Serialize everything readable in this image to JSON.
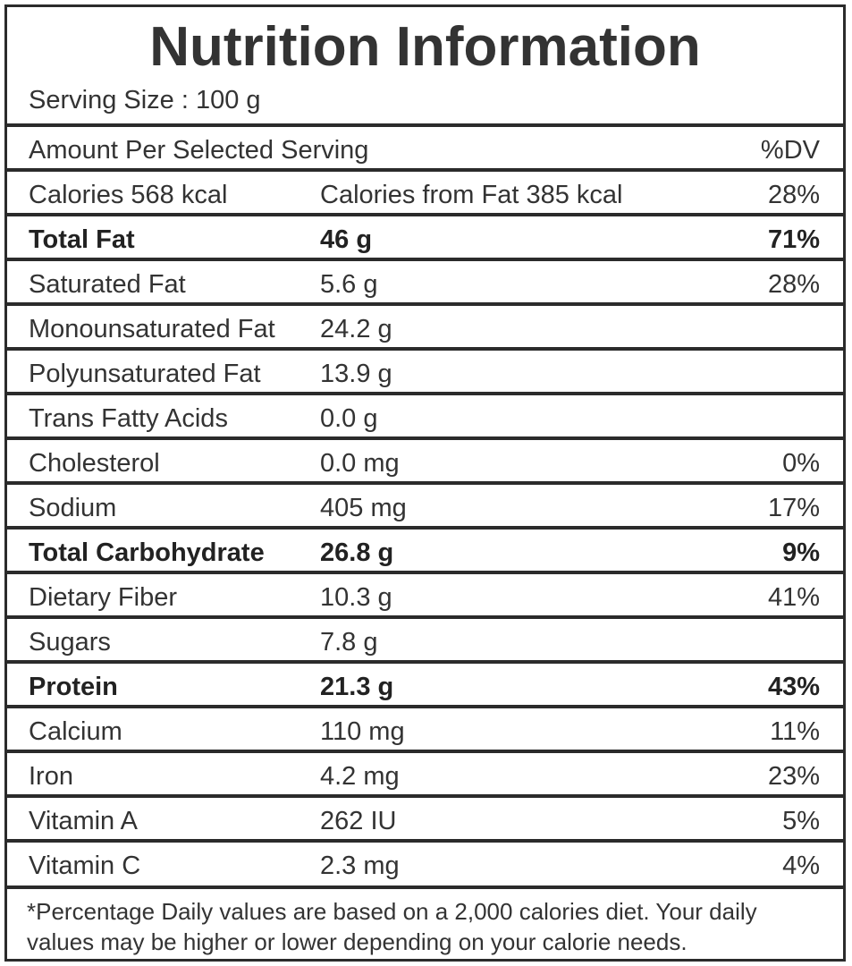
{
  "title": "Nutrition Information",
  "serving": "Serving Size : 100 g",
  "header": {
    "label": "Amount Per Selected Serving",
    "dv": "%DV"
  },
  "rows": [
    {
      "name": "Calories 568 kcal",
      "amount": "Calories from Fat 385 kcal",
      "dv": "28%",
      "bold": false
    },
    {
      "name": "Total Fat",
      "amount": "46 g",
      "dv": "71%",
      "bold": true
    },
    {
      "name": "Saturated Fat",
      "amount": "5.6 g",
      "dv": "28%",
      "bold": false
    },
    {
      "name": "Monounsaturated Fat",
      "amount": "24.2 g",
      "dv": "",
      "bold": false
    },
    {
      "name": "Polyunsaturated Fat",
      "amount": "13.9 g",
      "dv": "",
      "bold": false
    },
    {
      "name": "Trans Fatty Acids",
      "amount": "0.0 g",
      "dv": "",
      "bold": false
    },
    {
      "name": "Cholesterol",
      "amount": "0.0 mg",
      "dv": "0%",
      "bold": false
    },
    {
      "name": "Sodium",
      "amount": "405 mg",
      "dv": "17%",
      "bold": false
    },
    {
      "name": "Total Carbohydrate",
      "amount": "26.8 g",
      "dv": "9%",
      "bold": true
    },
    {
      "name": "Dietary Fiber",
      "amount": "10.3 g",
      "dv": "41%",
      "bold": false
    },
    {
      "name": "Sugars",
      "amount": "7.8 g",
      "dv": "",
      "bold": false
    },
    {
      "name": "Protein",
      "amount": "21.3 g",
      "dv": "43%",
      "bold": true
    },
    {
      "name": "Calcium",
      "amount": "110 mg",
      "dv": "11%",
      "bold": false
    },
    {
      "name": "Iron",
      "amount": "4.2 mg",
      "dv": "23%",
      "bold": false
    },
    {
      "name": "Vitamin A",
      "amount": "262 IU",
      "dv": "5%",
      "bold": false
    },
    {
      "name": "Vitamin C",
      "amount": "2.3 mg",
      "dv": "4%",
      "bold": false
    }
  ],
  "footnote": "*Percentage Daily values are based on a 2,000 calories diet. Your daily values may be higher or lower depending on your calorie needs."
}
